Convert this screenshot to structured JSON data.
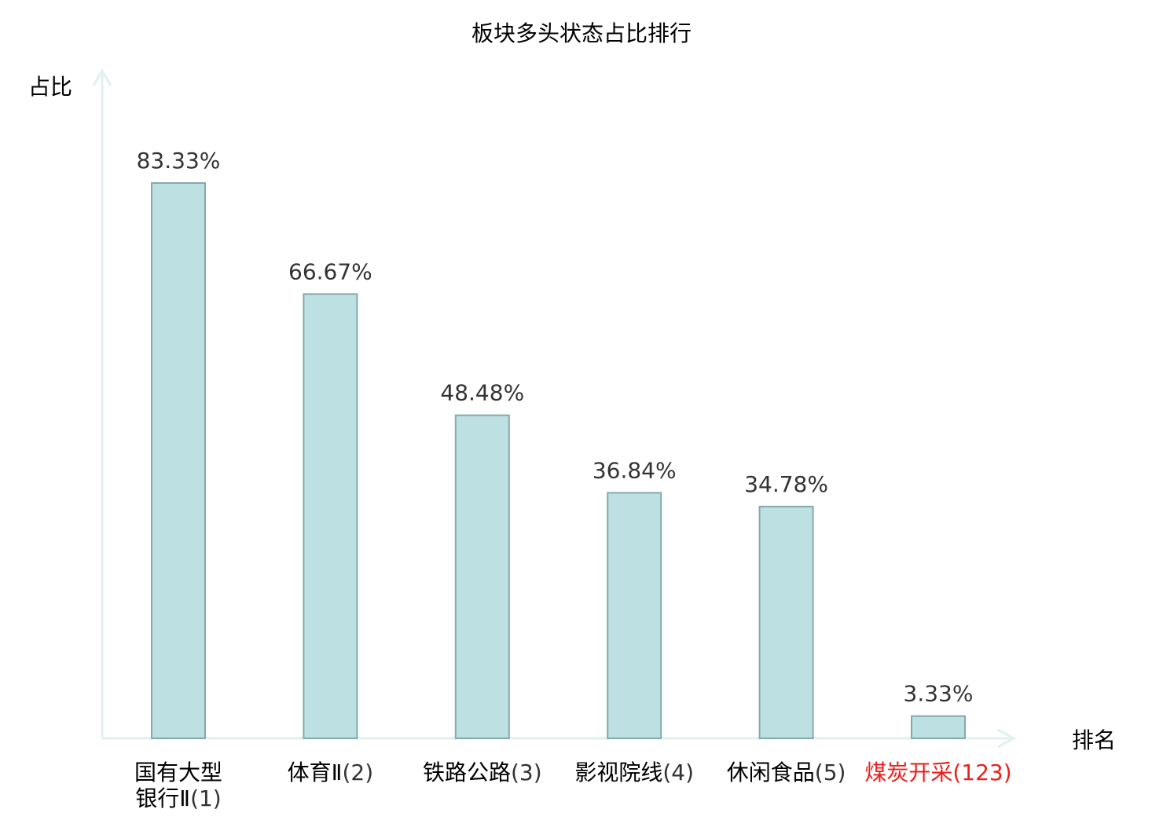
{
  "chart_data": {
    "type": "bar",
    "title": "板块多头状态占比排行",
    "xlabel": "排名",
    "ylabel": "占比",
    "ylim": [
      0,
      100
    ],
    "grid": false,
    "categories": [
      {
        "name": "国有大型银行Ⅱ",
        "rank": "(1)"
      },
      {
        "name": "体育Ⅱ",
        "rank": "(2)"
      },
      {
        "name": "铁路公路",
        "rank": "(3)"
      },
      {
        "name": "影视院线",
        "rank": "(4)"
      },
      {
        "name": "休闲食品",
        "rank": "(5)"
      },
      {
        "name": "煤炭开采",
        "rank": "(123)"
      }
    ],
    "values": [
      83.33,
      66.67,
      48.48,
      36.84,
      34.78,
      3.33
    ],
    "value_labels": [
      "83.33%",
      "66.67%",
      "48.48%",
      "36.84%",
      "34.78%",
      "3.33%"
    ],
    "highlight_index": 5,
    "colors": {
      "bar_fill": "#bde0e3",
      "bar_stroke": "#86a9ab",
      "axis": "#e0f1ef",
      "text": "#000000",
      "value_label": "#333333",
      "rank_text": "#333333",
      "highlight": "#e8211d"
    }
  }
}
